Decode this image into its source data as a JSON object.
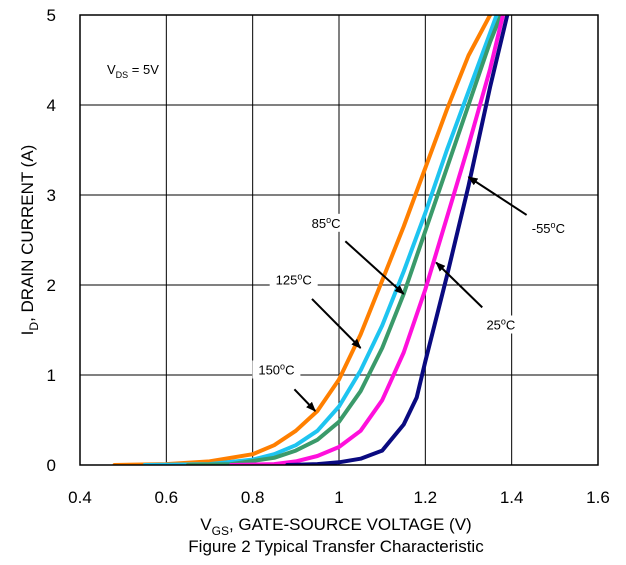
{
  "chart_data": {
    "type": "line",
    "title": "Figure 2 Typical Transfer Characteristic",
    "xlabel": {
      "main": "V",
      "sub": "GS",
      "rest": ", GATE-SOURCE VOLTAGE (V)"
    },
    "ylabel": {
      "main": "I",
      "sub": "D",
      "rest": ", DRAIN CURRENT (A)"
    },
    "xlim": [
      0.4,
      1.6
    ],
    "ylim": [
      0,
      5
    ],
    "xticks": [
      "0.4",
      "0.6",
      "0.8",
      "1",
      "1.2",
      "1.4",
      "1.6"
    ],
    "yticks": [
      "0",
      "1",
      "2",
      "3",
      "4",
      "5"
    ],
    "grid": true,
    "condition": {
      "main": "V",
      "sub": "DS",
      "rest": " = 5V"
    },
    "series": [
      {
        "name": "150°C",
        "color": "#FF7F00",
        "x": [
          0.48,
          0.6,
          0.7,
          0.8,
          0.85,
          0.9,
          0.95,
          1.0,
          1.05,
          1.1,
          1.15,
          1.2,
          1.25,
          1.3,
          1.35
        ],
        "y": [
          0,
          0.01,
          0.04,
          0.12,
          0.22,
          0.38,
          0.6,
          0.95,
          1.45,
          2.05,
          2.65,
          3.3,
          3.95,
          4.55,
          5.0
        ]
      },
      {
        "name": "125°C",
        "color": "#1EC4F0",
        "x": [
          0.55,
          0.7,
          0.8,
          0.85,
          0.9,
          0.95,
          1.0,
          1.05,
          1.1,
          1.15,
          1.2,
          1.25,
          1.3,
          1.35,
          1.365
        ],
        "y": [
          0,
          0.01,
          0.06,
          0.12,
          0.22,
          0.38,
          0.65,
          1.05,
          1.55,
          2.15,
          2.8,
          3.5,
          4.15,
          4.8,
          5.0
        ]
      },
      {
        "name": "85°C",
        "color": "#3A9A6A",
        "x": [
          0.65,
          0.75,
          0.85,
          0.9,
          0.95,
          1.0,
          1.05,
          1.1,
          1.15,
          1.2,
          1.25,
          1.3,
          1.35,
          1.375
        ],
        "y": [
          0,
          0.01,
          0.08,
          0.16,
          0.28,
          0.48,
          0.82,
          1.3,
          1.9,
          2.6,
          3.3,
          4.0,
          4.7,
          5.0
        ]
      },
      {
        "name": "25°C",
        "color": "#FF10DC",
        "x": [
          0.75,
          0.85,
          0.9,
          0.95,
          1.0,
          1.05,
          1.1,
          1.15,
          1.2,
          1.25,
          1.3,
          1.35,
          1.38
        ],
        "y": [
          0,
          0.01,
          0.04,
          0.1,
          0.2,
          0.38,
          0.72,
          1.25,
          1.95,
          2.75,
          3.55,
          4.4,
          5.0
        ]
      },
      {
        "name": "-55°C",
        "color": "#0A0A80",
        "x": [
          0.88,
          0.95,
          1.0,
          1.05,
          1.1,
          1.15,
          1.18,
          1.2,
          1.25,
          1.3,
          1.35,
          1.39
        ],
        "y": [
          0,
          0.01,
          0.03,
          0.07,
          0.16,
          0.45,
          0.75,
          1.15,
          2.1,
          3.1,
          4.2,
          5.0
        ]
      }
    ],
    "annotations": [
      {
        "series": "150°C",
        "text": {
          "main": "150",
          "sup": "o",
          "rest": "C"
        },
        "label_at": [
          0.855,
          1.05
        ],
        "arrow_to": [
          0.945,
          0.6
        ]
      },
      {
        "series": "125°C",
        "text": {
          "main": "125",
          "sup": "o",
          "rest": "C"
        },
        "label_at": [
          0.895,
          2.05
        ],
        "arrow_to": [
          1.05,
          1.3
        ]
      },
      {
        "series": "85°C",
        "text": {
          "main": "85",
          "sup": "o",
          "rest": "C"
        },
        "label_at": [
          0.97,
          2.68
        ],
        "arrow_to": [
          1.15,
          1.9
        ]
      },
      {
        "series": "25°C",
        "text": {
          "main": "25",
          "sup": "o",
          "rest": "C"
        },
        "label_at": [
          1.375,
          1.55
        ],
        "arrow_to": [
          1.225,
          2.25
        ]
      },
      {
        "series": "-55°C",
        "text": {
          "main": "-55",
          "sup": "o",
          "rest": "C"
        },
        "label_at": [
          1.485,
          2.62
        ],
        "arrow_to": [
          1.3,
          3.2
        ]
      }
    ]
  }
}
